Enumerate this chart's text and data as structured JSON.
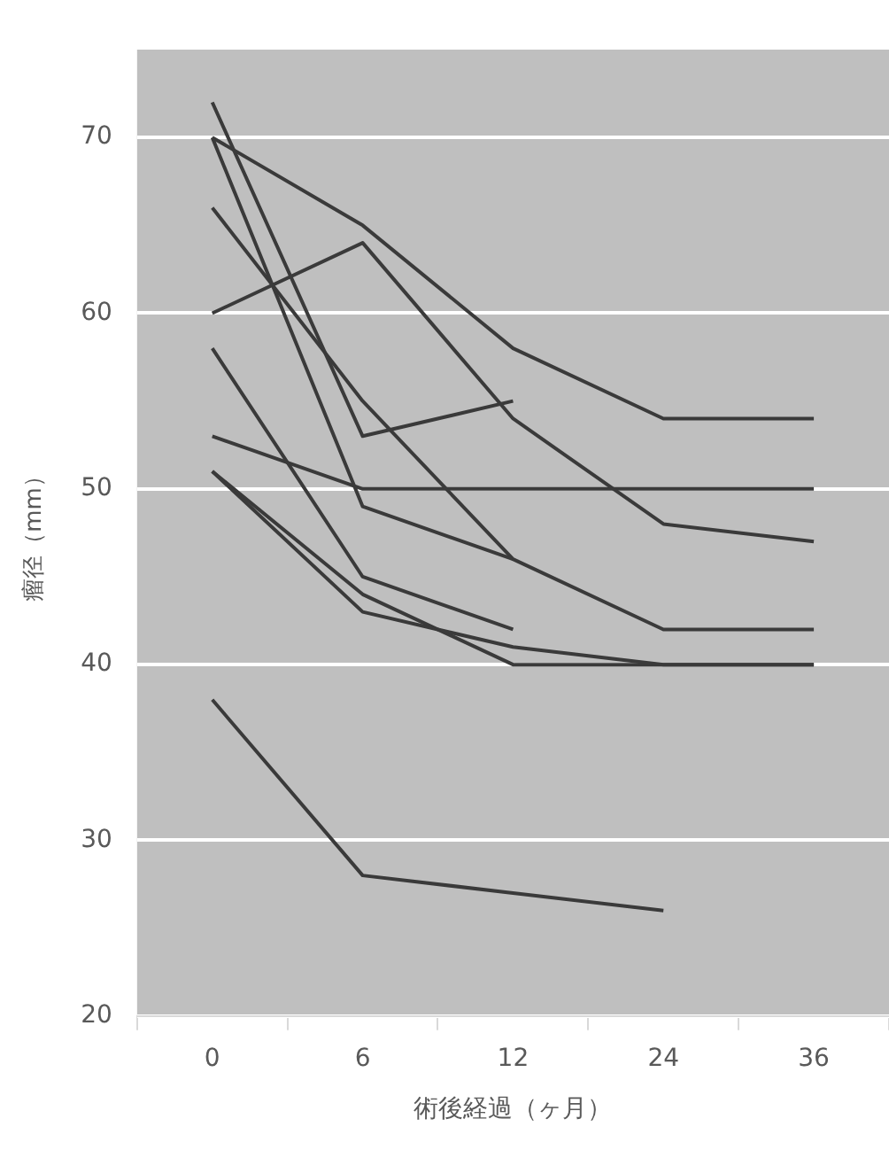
{
  "chart_data": {
    "type": "line",
    "xlabel": "術後経過（ヶ月）",
    "ylabel": "瘤径（mm）",
    "categories": [
      "0",
      "6",
      "12",
      "24",
      "36"
    ],
    "series": [
      {
        "color": "#3a3a3a",
        "values": [
          72,
          53,
          55,
          null,
          null
        ]
      },
      {
        "color": "#3a3a3a",
        "values": [
          70,
          65,
          58,
          54,
          54
        ]
      },
      {
        "color": "#3a3a3a",
        "values": [
          70,
          49,
          46,
          null,
          null
        ]
      },
      {
        "color": "#3a3a3a",
        "values": [
          66,
          55,
          46,
          42,
          42
        ]
      },
      {
        "color": "#3a3a3a",
        "values": [
          60,
          64,
          54,
          48,
          47
        ]
      },
      {
        "color": "#3a3a3a",
        "values": [
          58,
          45,
          42,
          null,
          null
        ]
      },
      {
        "color": "#3a3a3a",
        "values": [
          53,
          50,
          50,
          50,
          50
        ]
      },
      {
        "color": "#3a3a3a",
        "values": [
          51,
          43,
          41,
          40,
          40
        ]
      },
      {
        "color": "#3a3a3a",
        "values": [
          51,
          44,
          40,
          40,
          40
        ]
      },
      {
        "color": "#3a3a3a",
        "values": [
          38,
          28,
          27,
          26,
          null
        ]
      }
    ],
    "ylim": [
      20,
      75
    ],
    "yticks": [
      20,
      30,
      40,
      50,
      60,
      70
    ],
    "grid": "y",
    "legend": false,
    "marker": "none",
    "line_style": "solid"
  }
}
